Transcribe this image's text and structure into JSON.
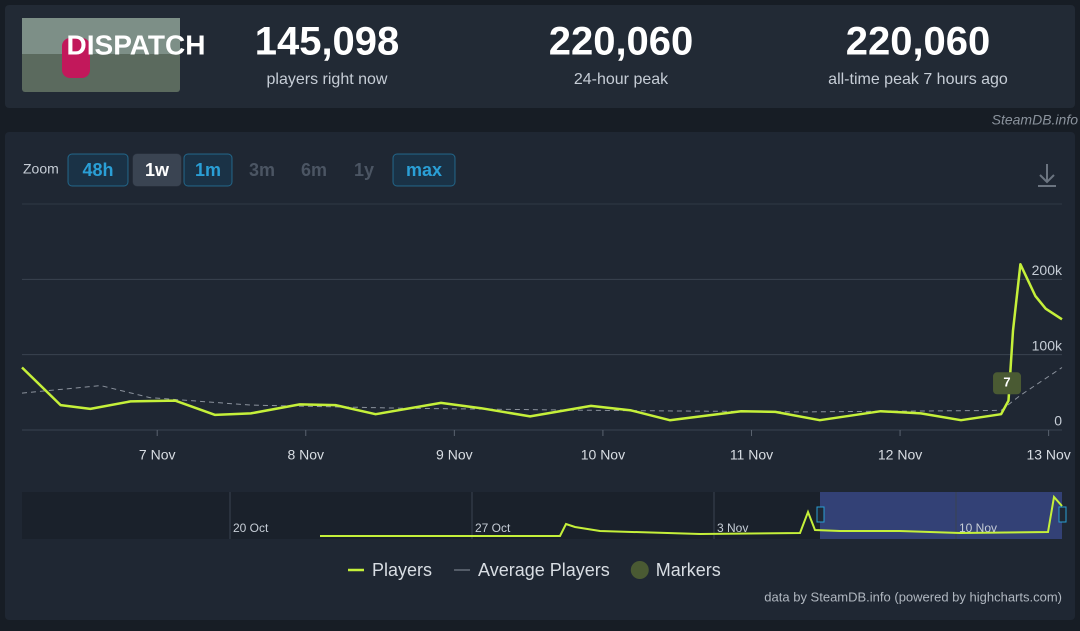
{
  "header": {
    "logo_text": "DISPATCH",
    "stats": [
      {
        "value": "145,098",
        "label": "players right now"
      },
      {
        "value": "220,060",
        "label": "24-hour peak"
      },
      {
        "value": "220,060",
        "label": "all-time peak 7 hours ago"
      }
    ]
  },
  "watermark": "SteamDB.info",
  "zoom": {
    "label": "Zoom",
    "buttons": [
      "48h",
      "1w",
      "1m",
      "3m",
      "6m",
      "1y",
      "max"
    ]
  },
  "chart_data": {
    "type": "line",
    "xlim": [
      6.09,
      13.09
    ],
    "xticks": [
      {
        "value": 7,
        "label": "7 Nov"
      },
      {
        "value": 8,
        "label": "8 Nov"
      },
      {
        "value": 9,
        "label": "9 Nov"
      },
      {
        "value": 10,
        "label": "10 Nov"
      },
      {
        "value": 11,
        "label": "11 Nov"
      },
      {
        "value": 12,
        "label": "12 Nov"
      },
      {
        "value": 13,
        "label": "13 Nov"
      }
    ],
    "ylim": [
      0,
      300000
    ],
    "yticks": [
      0,
      {
        "value": 100000,
        "label": "100k"
      },
      {
        "value": 200000,
        "label": "200k"
      }
    ],
    "grid": true,
    "series": [
      {
        "name": "Players",
        "color": "#c5f03a",
        "dashed": false,
        "x": [
          6.09,
          6.35,
          6.55,
          6.82,
          7.12,
          7.39,
          7.63,
          7.96,
          8.2,
          8.47,
          8.91,
          9.18,
          9.51,
          9.92,
          10.19,
          10.45,
          10.93,
          11.16,
          11.46,
          11.87,
          12.14,
          12.41,
          12.68,
          12.73,
          12.76,
          12.81,
          12.91,
          12.98,
          13.09
        ],
        "values": [
          83000,
          33000,
          28000,
          38000,
          39000,
          20000,
          22000,
          34000,
          33000,
          21000,
          36000,
          29000,
          18000,
          32000,
          26000,
          13000,
          25000,
          24000,
          13000,
          25000,
          22000,
          13000,
          21000,
          39000,
          132000,
          220000,
          178000,
          161000,
          147000
        ]
      },
      {
        "name": "Average Players",
        "color": "#8a919c",
        "dashed": true,
        "x": [
          6.09,
          6.62,
          6.95,
          7.63,
          8.64,
          9.98,
          11.33,
          12.68,
          12.81,
          13.09
        ],
        "values": [
          49000,
          59000,
          43000,
          33000,
          29000,
          26000,
          24000,
          26000,
          46000,
          83000
        ]
      }
    ],
    "annotations": [
      {
        "text": "7",
        "x": 12.72,
        "y": 62000
      }
    ],
    "marker_legend": "Markers",
    "navigator_labels": [
      "20 Oct",
      "27 Oct",
      "3 Nov",
      "10 Nov"
    ]
  },
  "credits": "data by SteamDB.info (powered by highcharts.com)"
}
